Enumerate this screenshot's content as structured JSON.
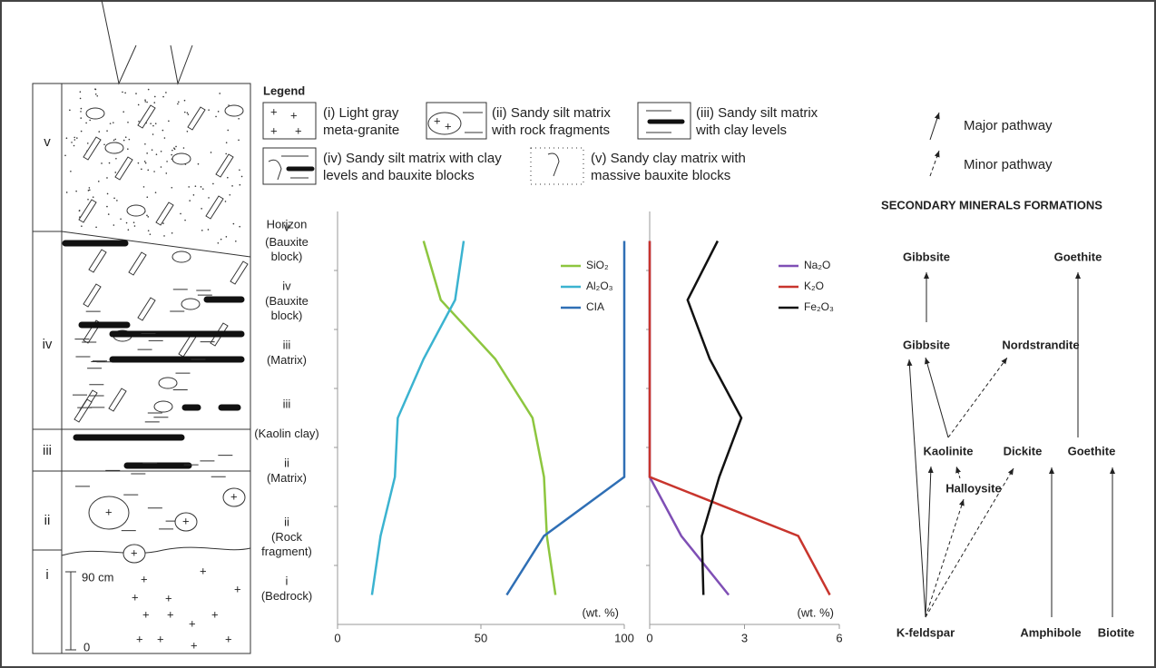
{
  "column": {
    "horizons": [
      "v",
      "iv",
      "iii",
      "ii",
      "i"
    ],
    "scale": [
      "90 cm",
      "0"
    ]
  },
  "legend": {
    "title": "Legend",
    "items": [
      "(i) Light gray\nmeta-granite",
      "(ii) Sandy silt matrix\nwith rock fragments",
      "(iii) Sandy silt matrix\nwith clay levels",
      "(iv) Sandy silt matrix with clay\nlevels and bauxite blocks",
      "(v) Sandy clay matrix with\nmassive bauxite blocks"
    ]
  },
  "chart_data": [
    {
      "type": "line",
      "y_label": "Horizon",
      "x_label": "(wt. %)",
      "categories": [
        "v\n(Bauxite\nblock)",
        "iv\n(Bauxite\nblock)",
        "iii\n(Matrix)",
        "iii\n\n(Kaolin clay)",
        "ii\n(Matrix)",
        "ii\n(Rock\nfragment)",
        "i\n(Bedrock)"
      ],
      "xlim": [
        0,
        100
      ],
      "xticks": [
        0,
        50,
        100
      ],
      "series": [
        {
          "name": "SiO₂",
          "color": "#8dc63f",
          "values": [
            30,
            36,
            55,
            68,
            72,
            73,
            76
          ]
        },
        {
          "name": "Al₂O₃",
          "color": "#3bb3d0",
          "values": [
            44,
            41,
            30,
            21,
            20,
            15,
            12
          ]
        },
        {
          "name": "CIA",
          "color": "#2f6fb5",
          "values": [
            100,
            100,
            100,
            100,
            100,
            72,
            59
          ]
        }
      ]
    },
    {
      "type": "line",
      "x_label": "(wt. %)",
      "xlim": [
        0,
        6
      ],
      "xticks": [
        0,
        3,
        6
      ],
      "series": [
        {
          "name": "Na₂O",
          "color": "#7f4fb5",
          "values": [
            0,
            0,
            0,
            0,
            0,
            1.0,
            2.5
          ]
        },
        {
          "name": "K₂O",
          "color": "#c8352d",
          "values": [
            0,
            0,
            0,
            0,
            0,
            4.7,
            5.7
          ]
        },
        {
          "name": "Fe₂O₃",
          "color": "#111111",
          "values": [
            2.15,
            1.2,
            1.9,
            2.9,
            2.2,
            1.65,
            1.7
          ]
        }
      ]
    }
  ],
  "diagram": {
    "legend": [
      "Major pathway",
      "Minor pathway"
    ],
    "title": "SECONDARY MINERALS FORMATIONS",
    "nodes": [
      "Gibbsite",
      "Goethite",
      "Gibbsite",
      "Nordstrandite",
      "Kaolinite",
      "Dickite",
      "Goethite",
      "Halloysite",
      "K-feldspar",
      "Amphibole",
      "Biotite"
    ]
  }
}
